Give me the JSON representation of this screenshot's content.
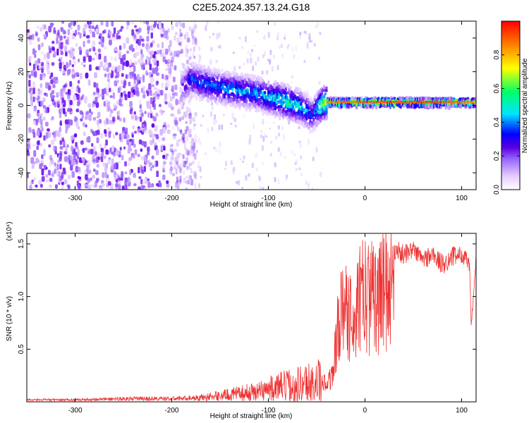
{
  "title": "C2E5.2024.357.13.24.G18",
  "chart_data": [
    {
      "type": "heatmap",
      "xlabel": "Height of straight line (km)",
      "ylabel": "Frequency (Hz)",
      "xlim": [
        -350,
        115
      ],
      "ylim": [
        -50,
        50
      ],
      "xticks": [
        -300,
        -200,
        -100,
        0,
        100
      ],
      "yticks": [
        -40,
        -20,
        0,
        20,
        40
      ],
      "grid": false,
      "colorbar": {
        "label": "Normalized spectral amplitude",
        "range": [
          0.0,
          1.0
        ],
        "ticks": [
          "0.0",
          "0.2",
          "0.4",
          "0.6",
          "0.8"
        ],
        "colormap": [
          "#ffffff",
          "#e6ccff",
          "#9966ff",
          "#6a00e8",
          "#0000ff",
          "#00e5ff",
          "#00ff66",
          "#ffff00",
          "#ff8800",
          "#ff0000"
        ]
      },
      "signal_track": {
        "x": [
          -190,
          -180,
          -170,
          -160,
          -150,
          -140,
          -130,
          -120,
          -110,
          -100,
          -90,
          -80,
          -70,
          -60,
          -55,
          -50,
          -45,
          -40,
          -30,
          -20,
          -10,
          0,
          20,
          40,
          60,
          80,
          100,
          115
        ],
        "frequency": [
          10,
          16,
          14,
          12,
          11,
          10,
          9,
          8,
          7,
          5,
          4,
          2,
          0,
          -3,
          -6,
          -2,
          1,
          2,
          2,
          2,
          2,
          2,
          2,
          2,
          2,
          2,
          2,
          2
        ],
        "amplitude": [
          0.3,
          0.45,
          0.45,
          0.45,
          0.45,
          0.5,
          0.5,
          0.5,
          0.5,
          0.55,
          0.6,
          0.6,
          0.6,
          0.5,
          0.4,
          0.55,
          0.75,
          0.85,
          0.9,
          0.9,
          0.9,
          0.95,
          0.95,
          0.95,
          0.95,
          0.95,
          0.9,
          0.85
        ]
      },
      "noise_region_x": [
        -350,
        -185
      ]
    },
    {
      "type": "line",
      "xlabel": "Height of straight line (km)",
      "ylabel": "SNR (10 * v/v)",
      "yscale_label": "(x10⁴)",
      "xlim": [
        -350,
        115
      ],
      "ylim": [
        0,
        1.6
      ],
      "xticks": [
        -300,
        -200,
        -100,
        0,
        100
      ],
      "yticks": [
        "0.5",
        "1.0",
        "1.5"
      ],
      "grid": false,
      "series": [
        {
          "color": "#ee3333",
          "x": [
            -350,
            -300,
            -250,
            -200,
            -170,
            -150,
            -130,
            -110,
            -100,
            -90,
            -80,
            -70,
            -60,
            -50,
            -45,
            -40,
            -35,
            -32,
            -30,
            -28,
            -25,
            -20,
            -15,
            -10,
            -5,
            0,
            5,
            10,
            15,
            20,
            25,
            30,
            40,
            50,
            60,
            70,
            80,
            90,
            100,
            105,
            108,
            110,
            115
          ],
          "y": [
            0.02,
            0.02,
            0.03,
            0.03,
            0.04,
            0.06,
            0.08,
            0.1,
            0.12,
            0.14,
            0.15,
            0.17,
            0.18,
            0.19,
            0.2,
            0.22,
            0.28,
            0.5,
            0.7,
            0.9,
            1.0,
            1.05,
            1.1,
            1.0,
            1.2,
            1.3,
            1.2,
            1.35,
            1.2,
            1.4,
            1.3,
            1.45,
            1.4,
            1.45,
            1.35,
            1.4,
            1.3,
            1.38,
            1.4,
            1.35,
            1.3,
            0.72,
            1.35
          ],
          "amplitude_spread": [
            0.01,
            0.01,
            0.02,
            0.02,
            0.03,
            0.05,
            0.07,
            0.1,
            0.12,
            0.14,
            0.16,
            0.18,
            0.2,
            0.22,
            0.24,
            0.3,
            0.4,
            0.45,
            0.45,
            0.45,
            0.45,
            0.4,
            0.35,
            0.35,
            0.3,
            0.25,
            0.2,
            0.2,
            0.15,
            0.15,
            0.12,
            0.1,
            0.1,
            0.08,
            0.1,
            0.1,
            0.1,
            0.1,
            0.08,
            0.08,
            0.08,
            0.05,
            0.05
          ]
        }
      ]
    }
  ]
}
